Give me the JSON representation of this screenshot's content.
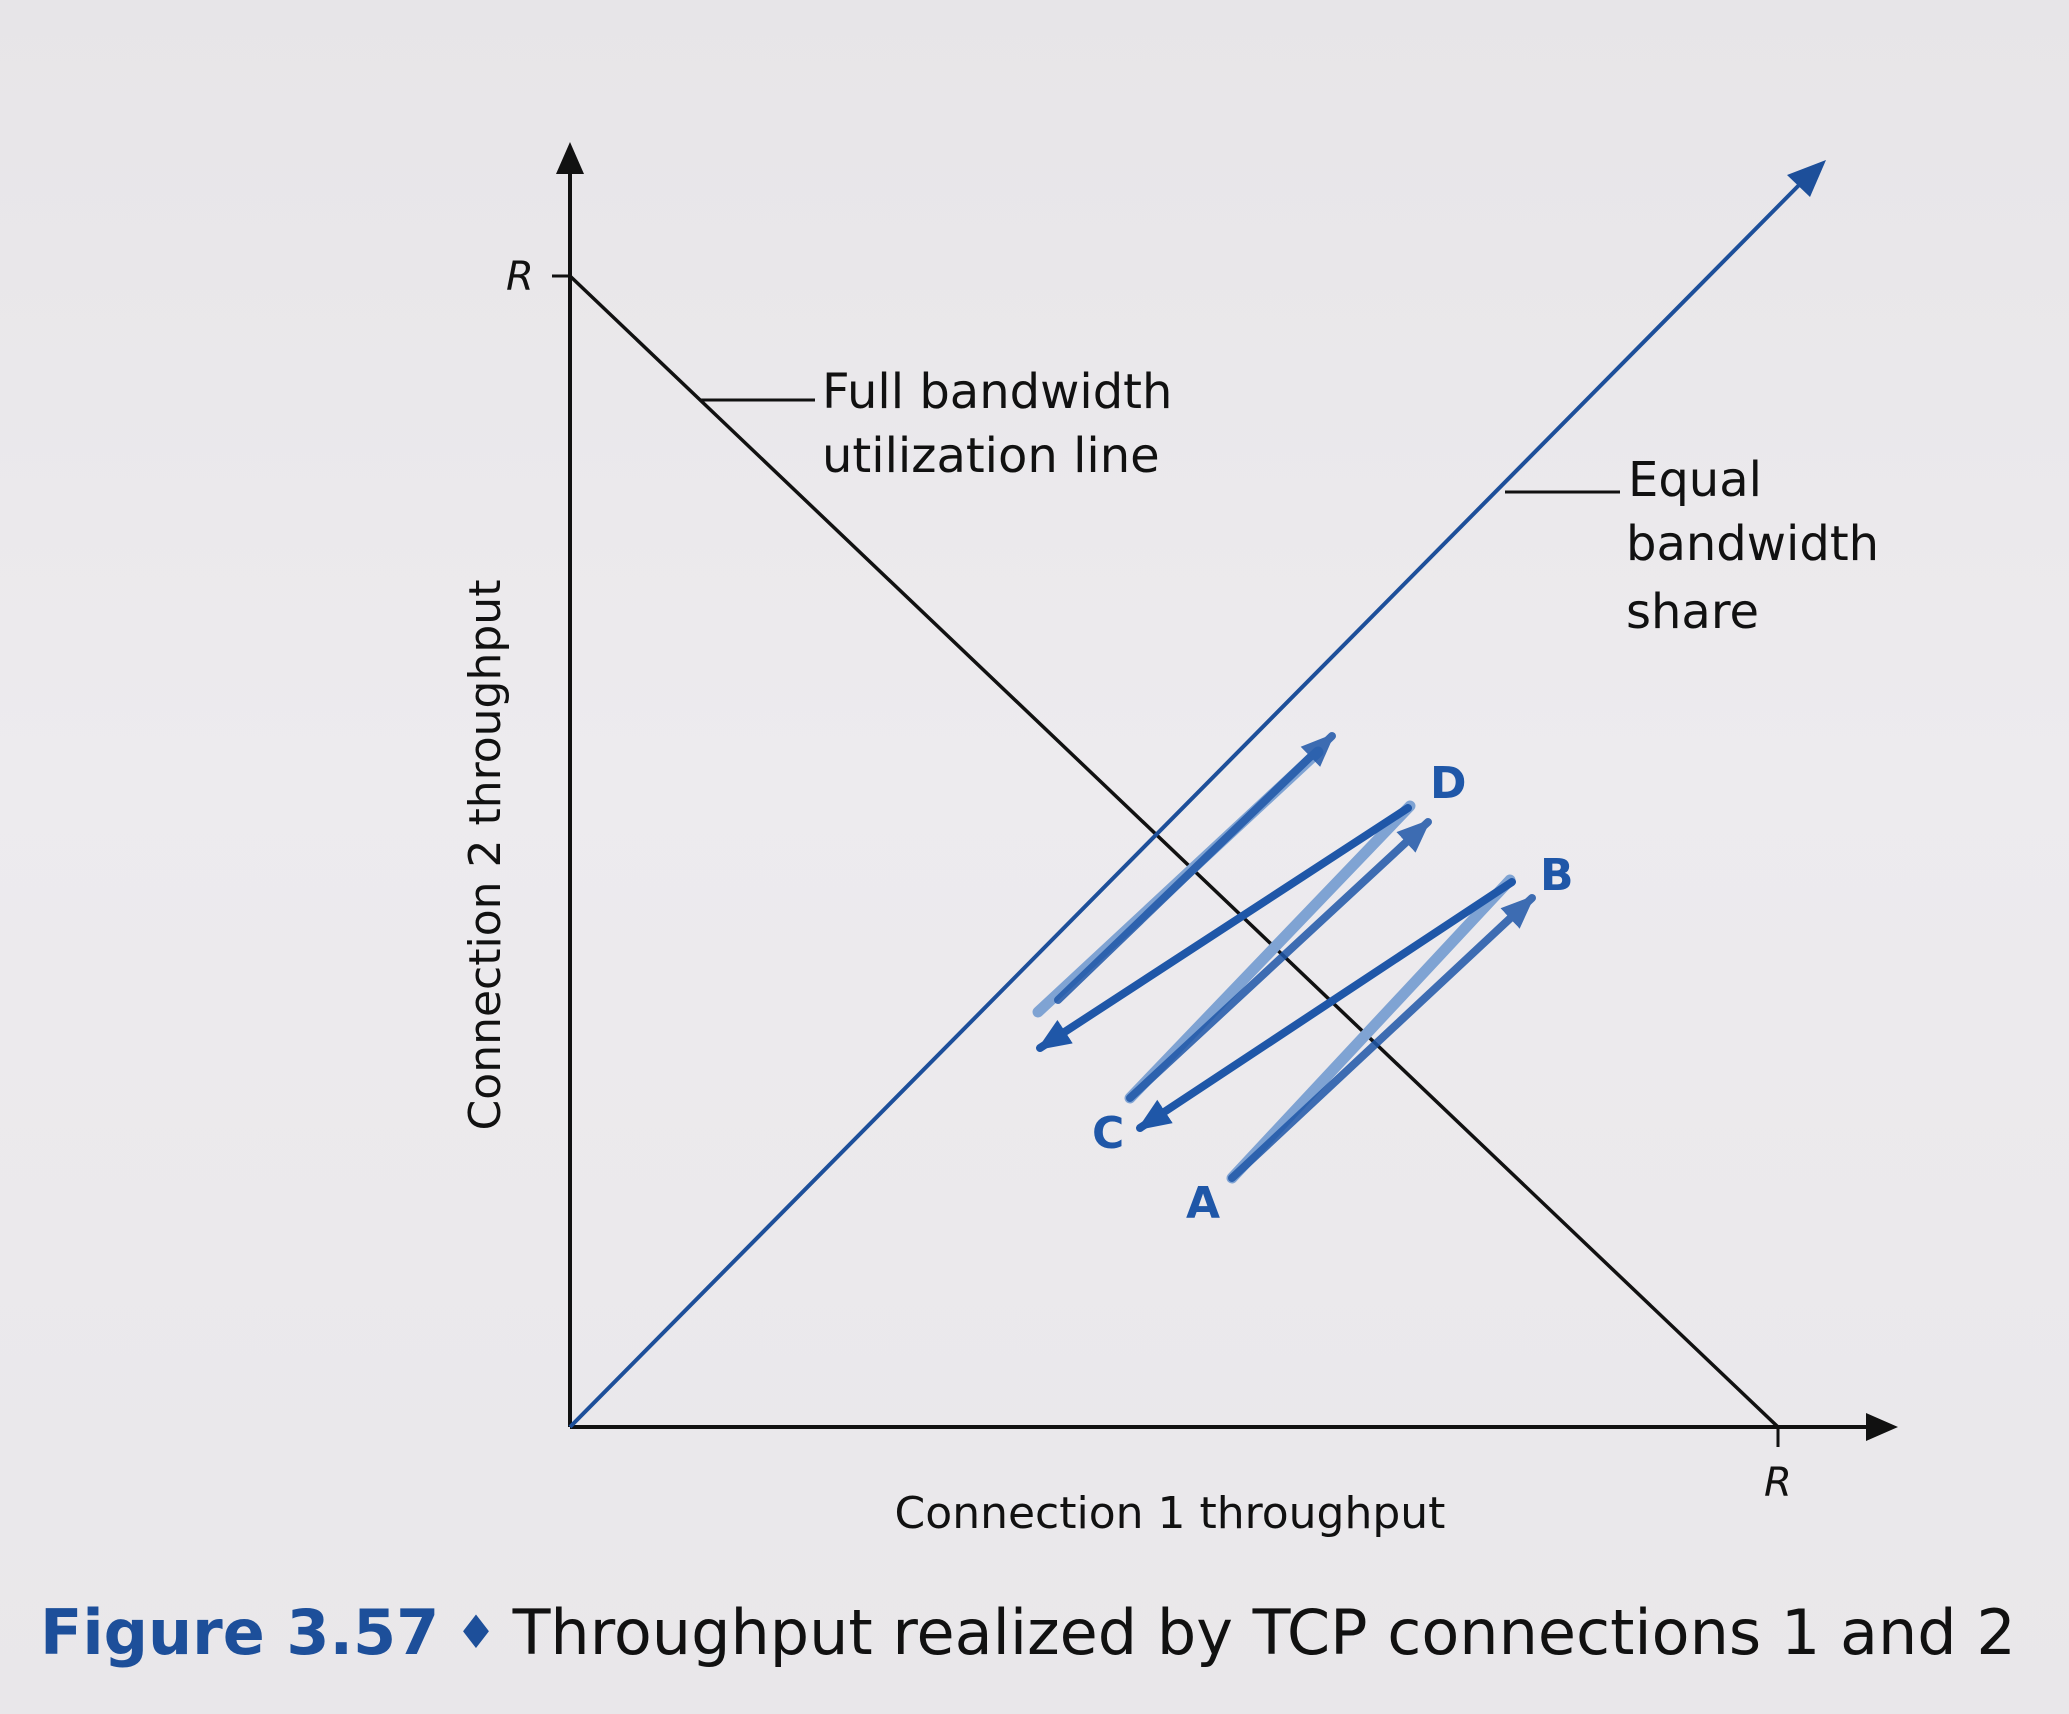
{
  "diagram": {
    "y_axis_label": "Connection 2 throughput",
    "x_axis_label": "Connection 1 throughput",
    "y_tick": "R",
    "x_tick": "R",
    "full_line_label_1": "Full bandwidth",
    "full_line_label_2": "utilization line",
    "equal_line_label_1": "Equal",
    "equal_line_label_2": "bandwidth",
    "equal_line_label_3": "share",
    "points": {
      "A": "A",
      "B": "B",
      "C": "C",
      "D": "D"
    }
  },
  "caption": {
    "figure": "Figure 3.57",
    "separator": "♦",
    "text": "Throughput realized by TCP connections 1 and 2"
  },
  "colors": {
    "line": "#111111",
    "arrow_dark": "#1f57a8",
    "arrow_light": "#7fa3d3",
    "figure_label": "#1d4f9a"
  }
}
